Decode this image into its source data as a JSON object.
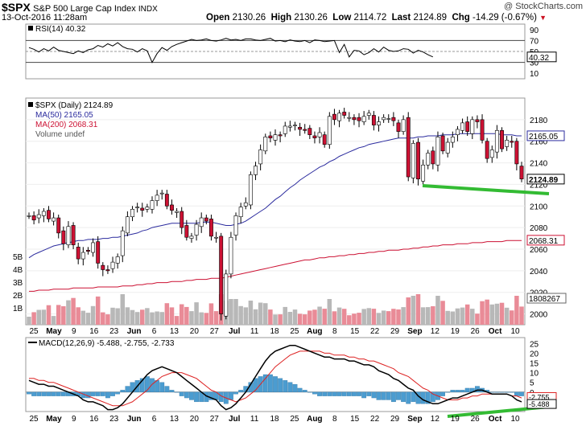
{
  "header": {
    "symbol": "$SPX",
    "name": "S&P 500 Large Cap Index",
    "exchange": "INDX",
    "date": "13-Oct-2016 11:28am",
    "copyright": "@ StockCharts.com",
    "open_label": "Open",
    "open": "2130.26",
    "high_label": "High",
    "high": "2130.26",
    "low_label": "Low",
    "low": "2114.72",
    "last_label": "Last",
    "last": "2124.89",
    "chg_label": "Chg",
    "chg": "-14.29 (-0.67%)"
  },
  "colors": {
    "up": "#ffffff",
    "down": "#cc1133",
    "ma50": "#2b2b9e",
    "ma200": "#cc1133",
    "trend": "#33bb33",
    "hist": "#4b9cd0",
    "macd": "#000000",
    "signal": "#dd2222",
    "volume_down": "#e98b97",
    "volume_up": "#b8b8b8"
  },
  "chart_data": [
    {
      "type": "line",
      "title": "RSI(14) 40.32",
      "series": [
        {
          "name": "RSI(14)",
          "values": [
            57,
            54,
            49,
            55,
            51,
            58,
            52,
            50,
            48,
            46,
            51,
            48,
            53,
            55,
            61,
            58,
            64,
            60,
            66,
            59,
            55,
            54,
            49,
            55,
            51,
            30,
            46,
            57,
            52,
            59,
            63,
            66,
            69,
            72,
            70,
            71,
            73,
            70,
            69,
            71,
            74,
            71,
            72,
            70,
            73,
            73,
            71,
            70,
            72,
            74,
            69,
            70,
            68,
            71,
            69,
            68,
            70,
            66,
            71,
            70,
            68,
            69,
            70,
            48,
            63,
            40,
            52,
            51,
            44,
            48,
            55,
            49,
            58,
            52,
            50,
            51,
            55,
            54,
            47,
            52,
            49,
            44,
            40
          ]
        }
      ],
      "ylim": [
        0,
        100
      ],
      "y_ticks": [
        10,
        30,
        50,
        70,
        90
      ],
      "reference_lines": [
        30,
        50,
        70
      ],
      "last_value_label": "40.32"
    },
    {
      "type": "candlestick",
      "title": "$SPX (Daily) 2124.89",
      "legend": [
        "MA(50) 2165.05",
        "MA(200) 2068.31",
        "Volume undef"
      ],
      "x_tick_labels": [
        "25",
        "May",
        "9",
        "16",
        "23",
        "Jun",
        "6",
        "13",
        "20",
        "27",
        "Jul",
        "11",
        "18",
        "25",
        "Aug",
        "8",
        "15",
        "22",
        "29",
        "Sep",
        "12",
        "19",
        "26",
        "Oct",
        "10"
      ],
      "ylim": [
        1990,
        2200
      ],
      "y_ticks": [
        2000,
        2020,
        2040,
        2060,
        2080,
        2100,
        2120,
        2140,
        2160,
        2180
      ],
      "volume_axis_labels": [
        "1B",
        "2B",
        "3B",
        "4B",
        "5B"
      ],
      "price_labels": {
        "ma50": "2165.05",
        "ma200": "2068.31",
        "last": "2124.89",
        "volume": "1808267"
      },
      "close": [
        2091,
        2087,
        2092,
        2095,
        2088,
        2089,
        2075,
        2065,
        2081,
        2064,
        2051,
        2057,
        2058,
        2066,
        2047,
        2041,
        2040,
        2048,
        2053,
        2077,
        2090,
        2097,
        2099,
        2096,
        2099,
        2105,
        2110,
        2112,
        2100,
        2096,
        2095,
        2080,
        2071,
        2072,
        2083,
        2089,
        2086,
        2072,
        2071,
        2000,
        2037,
        2071,
        2091,
        2099,
        2103,
        2129,
        2137,
        2152,
        2164,
        2163,
        2166,
        2165,
        2174,
        2174,
        2175,
        2171,
        2170,
        2166,
        2163,
        2168,
        2157,
        2183,
        2180,
        2186,
        2184,
        2182,
        2180,
        2179,
        2183,
        2186,
        2175,
        2178,
        2182,
        2181,
        2179,
        2169,
        2180,
        2127,
        2158,
        2125,
        2138,
        2149,
        2139,
        2164,
        2151,
        2159,
        2164,
        2171,
        2177,
        2169,
        2180,
        2178,
        2161,
        2144,
        2152,
        2170,
        2153,
        2161,
        2159,
        2139,
        2125
      ],
      "ma50": [
        2052,
        2055,
        2057,
        2059,
        2061,
        2063,
        2064,
        2065,
        2066,
        2067,
        2068,
        2068,
        2069,
        2069,
        2069,
        2070,
        2070,
        2071,
        2071,
        2072,
        2073,
        2074,
        2075,
        2077,
        2078,
        2080,
        2081,
        2082,
        2083,
        2084,
        2084,
        2084,
        2084,
        2084,
        2084,
        2085,
        2085,
        2085,
        2084,
        2083,
        2082,
        2082,
        2083,
        2084,
        2086,
        2089,
        2092,
        2095,
        2098,
        2102,
        2106,
        2109,
        2113,
        2117,
        2120,
        2124,
        2127,
        2130,
        2133,
        2136,
        2138,
        2141,
        2143,
        2146,
        2148,
        2150,
        2152,
        2154,
        2155,
        2157,
        2158,
        2159,
        2160,
        2161,
        2162,
        2163,
        2163,
        2163,
        2163,
        2164,
        2164,
        2165,
        2165,
        2165,
        2166,
        2166,
        2166,
        2167,
        2167,
        2167,
        2167,
        2167,
        2167,
        2167,
        2167,
        2167,
        2166,
        2166,
        2166,
        2165,
        2165
      ],
      "ma200": [
        2021,
        2021,
        2022,
        2022,
        2022,
        2023,
        2023,
        2023,
        2023,
        2024,
        2024,
        2024,
        2024,
        2024,
        2025,
        2025,
        2025,
        2025,
        2025,
        2026,
        2026,
        2026,
        2027,
        2027,
        2028,
        2028,
        2029,
        2029,
        2029,
        2030,
        2030,
        2030,
        2031,
        2031,
        2032,
        2032,
        2032,
        2033,
        2033,
        2033,
        2034,
        2035,
        2036,
        2037,
        2038,
        2039,
        2040,
        2041,
        2042,
        2043,
        2044,
        2045,
        2046,
        2047,
        2048,
        2049,
        2050,
        2050,
        2051,
        2052,
        2052,
        2053,
        2053,
        2054,
        2054,
        2055,
        2055,
        2056,
        2056,
        2057,
        2057,
        2058,
        2058,
        2059,
        2059,
        2059,
        2060,
        2060,
        2061,
        2061,
        2062,
        2062,
        2063,
        2063,
        2064,
        2064,
        2064,
        2065,
        2065,
        2065,
        2066,
        2066,
        2066,
        2067,
        2067,
        2067,
        2067,
        2068,
        2068,
        2068,
        2068
      ]
    },
    {
      "type": "line",
      "title": "MACD(12,26,9) -5.488, -2.755, -2.733",
      "series": [
        {
          "name": "MACD",
          "values": [
            6,
            5,
            4,
            4,
            3,
            3,
            2,
            1,
            0,
            -1,
            -2,
            -4,
            -5,
            -5,
            -6,
            -7,
            -9,
            -9,
            -8,
            -6,
            -3,
            0,
            3,
            6,
            9,
            11,
            12,
            13,
            12,
            11,
            10,
            8,
            6,
            4,
            2,
            0,
            -2,
            -3,
            -4,
            -7,
            -9,
            -8,
            -6,
            -3,
            0,
            4,
            8,
            12,
            16,
            19,
            21,
            22,
            23,
            24,
            24,
            23,
            22,
            21,
            20,
            19,
            18,
            18,
            17,
            17,
            17,
            16,
            16,
            15,
            14,
            14,
            13,
            11,
            10,
            9,
            7,
            6,
            4,
            2,
            1,
            -2,
            -4,
            -5,
            -6,
            -6,
            -5,
            -4,
            -3,
            -3,
            -2,
            -1,
            0,
            1,
            1,
            0,
            -1,
            -1,
            -1,
            -1,
            -2,
            -4,
            -5
          ]
        },
        {
          "name": "Signal",
          "values": [
            7,
            7,
            6,
            6,
            5,
            5,
            4,
            3,
            2,
            1,
            0,
            -1,
            -2,
            -3,
            -4,
            -5,
            -6,
            -7,
            -7,
            -7,
            -6,
            -5,
            -3,
            -1,
            1,
            4,
            6,
            8,
            9,
            10,
            10,
            10,
            9,
            8,
            7,
            5,
            3,
            1,
            0,
            -2,
            -3,
            -4,
            -5,
            -4,
            -3,
            -1,
            1,
            4,
            7,
            10,
            13,
            15,
            17,
            19,
            20,
            21,
            21,
            21,
            21,
            21,
            20,
            20,
            19,
            19,
            19,
            18,
            18,
            17,
            17,
            16,
            16,
            15,
            14,
            13,
            12,
            10,
            9,
            8,
            6,
            4,
            2,
            1,
            -1,
            -2,
            -3,
            -4,
            -4,
            -4,
            -3,
            -3,
            -2,
            -2,
            -1,
            -1,
            -1,
            -1,
            -1,
            -1,
            -2,
            -2,
            -3
          ]
        }
      ],
      "ylim": [
        -10,
        28
      ],
      "y_ticks": [
        -5,
        0,
        5,
        10,
        15,
        20,
        25
      ],
      "x_tick_labels": [
        "25",
        "May",
        "9",
        "16",
        "23",
        "Jun",
        "6",
        "13",
        "20",
        "27",
        "Jul",
        "11",
        "18",
        "25",
        "Aug",
        "8",
        "15",
        "22",
        "29",
        "Sep",
        "12",
        "19",
        "26",
        "Oct",
        "10"
      ],
      "last_value_labels": [
        "-2.755",
        "-5.488"
      ]
    }
  ]
}
